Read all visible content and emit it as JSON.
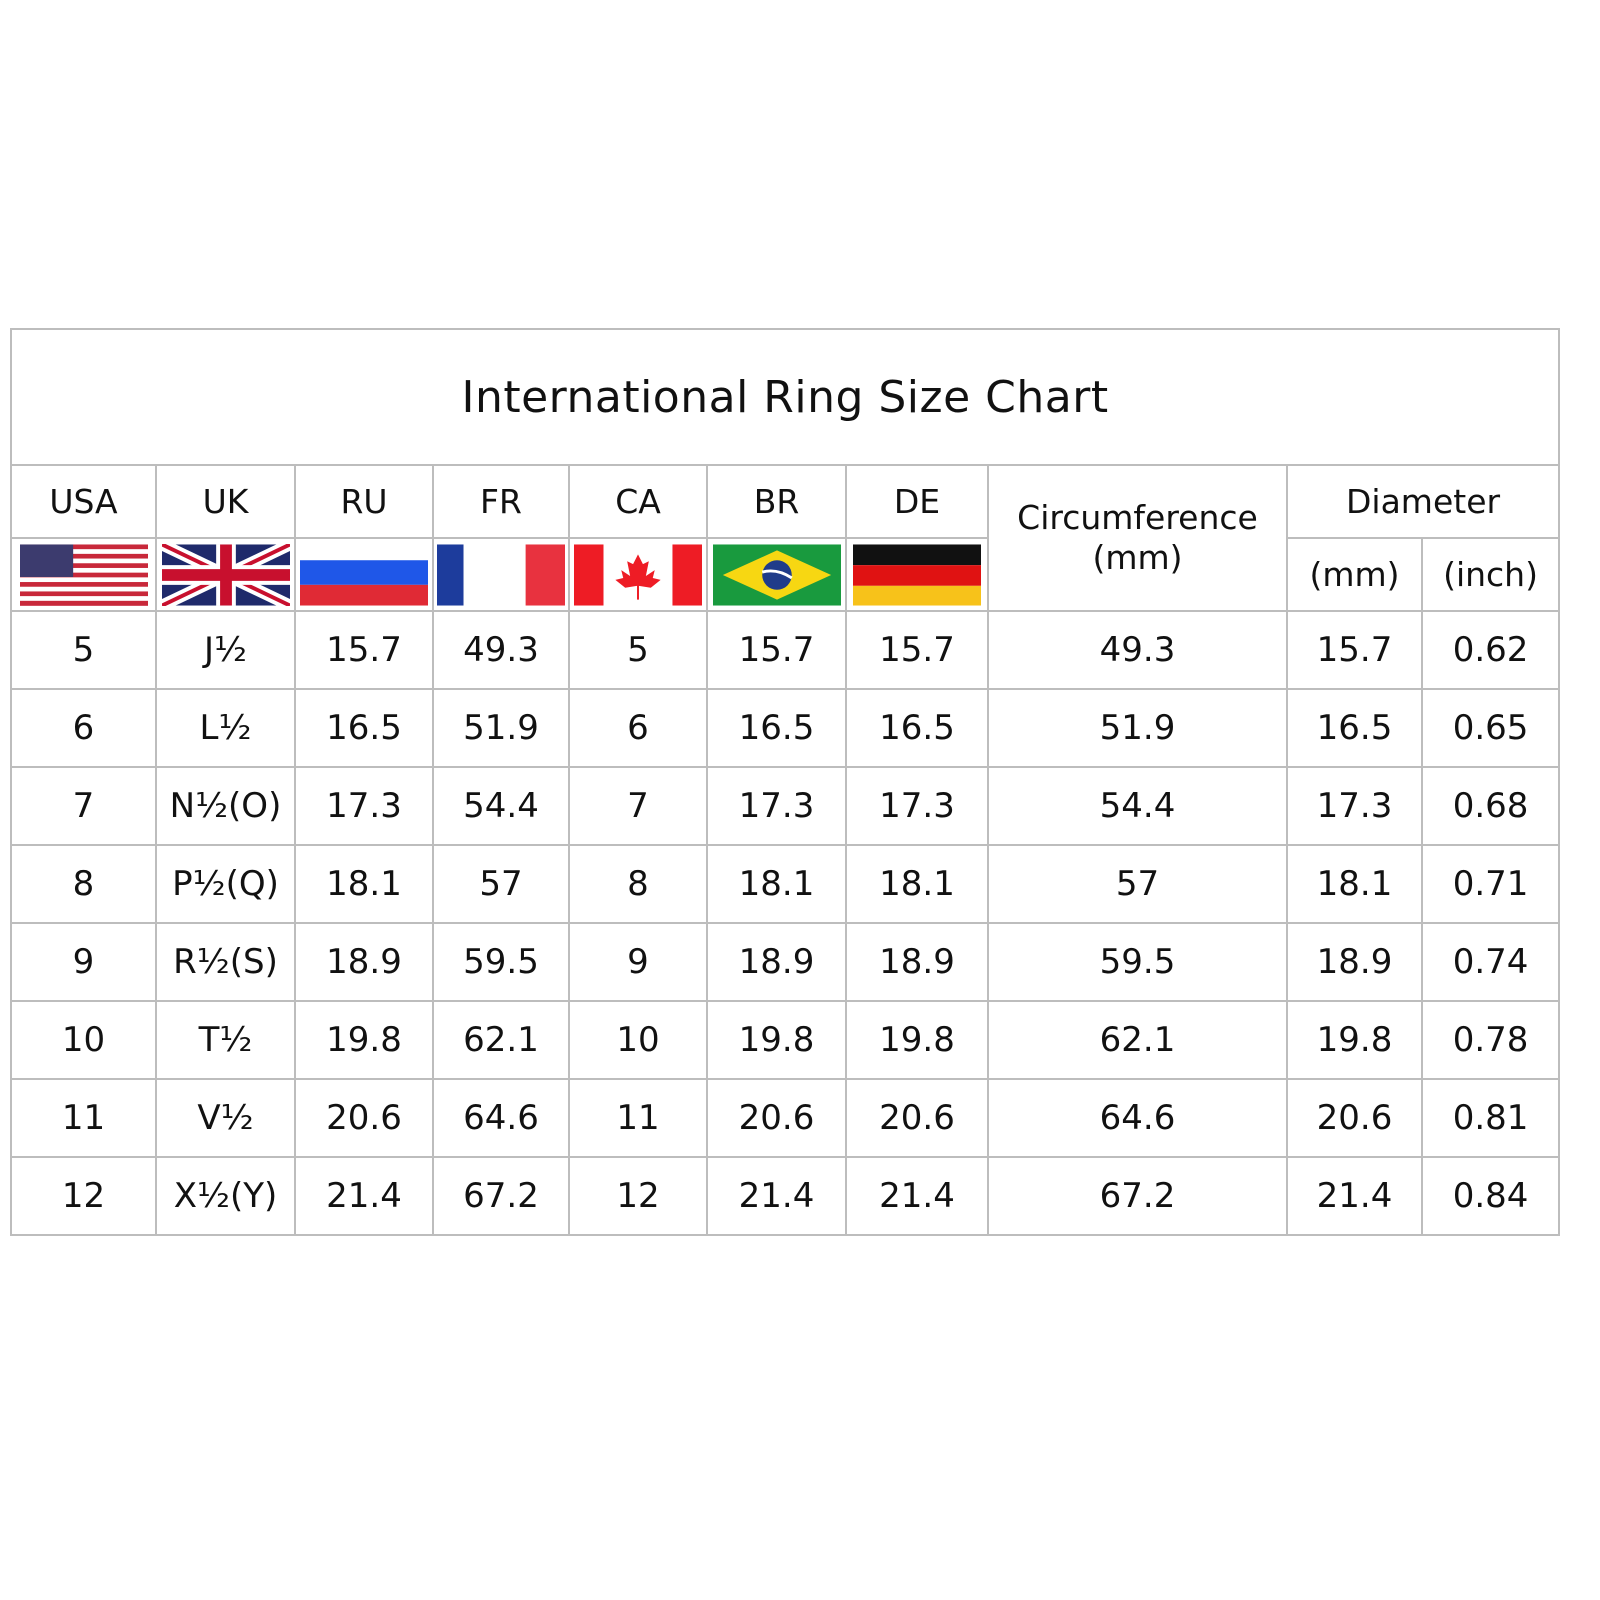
{
  "title": "International Ring Size Chart",
  "columns": {
    "usa": "USA",
    "uk": "UK",
    "ru": "RU",
    "fr": "FR",
    "ca": "CA",
    "br": "BR",
    "de": "DE",
    "circumference": "Circumference",
    "circumference_unit": "(mm)",
    "diameter": "Diameter",
    "diameter_mm": "(mm)",
    "diameter_inch": "(inch)"
  },
  "flags": [
    "us-flag-icon",
    "uk-flag-icon",
    "russia-flag-icon",
    "france-flag-icon",
    "canada-flag-icon",
    "brazil-flag-icon",
    "germany-flag-icon"
  ],
  "rows": [
    [
      "5",
      "J½",
      "15.7",
      "49.3",
      "5",
      "15.7",
      "15.7",
      "49.3",
      "15.7",
      "0.62"
    ],
    [
      "6",
      "L½",
      "16.5",
      "51.9",
      "6",
      "16.5",
      "16.5",
      "51.9",
      "16.5",
      "0.65"
    ],
    [
      "7",
      "N½(O)",
      "17.3",
      "54.4",
      "7",
      "17.3",
      "17.3",
      "54.4",
      "17.3",
      "0.68"
    ],
    [
      "8",
      "P½(Q)",
      "18.1",
      "57",
      "8",
      "18.1",
      "18.1",
      "57",
      "18.1",
      "0.71"
    ],
    [
      "9",
      "R½(S)",
      "18.9",
      "59.5",
      "9",
      "18.9",
      "18.9",
      "59.5",
      "18.9",
      "0.74"
    ],
    [
      "10",
      "T½",
      "19.8",
      "62.1",
      "10",
      "19.8",
      "19.8",
      "62.1",
      "19.8",
      "0.78"
    ],
    [
      "11",
      "V½",
      "20.6",
      "64.6",
      "11",
      "20.6",
      "20.6",
      "64.6",
      "20.6",
      "0.81"
    ],
    [
      "12",
      "X½(Y)",
      "21.4",
      "67.2",
      "12",
      "21.4",
      "21.4",
      "67.2",
      "21.4",
      "0.84"
    ]
  ]
}
